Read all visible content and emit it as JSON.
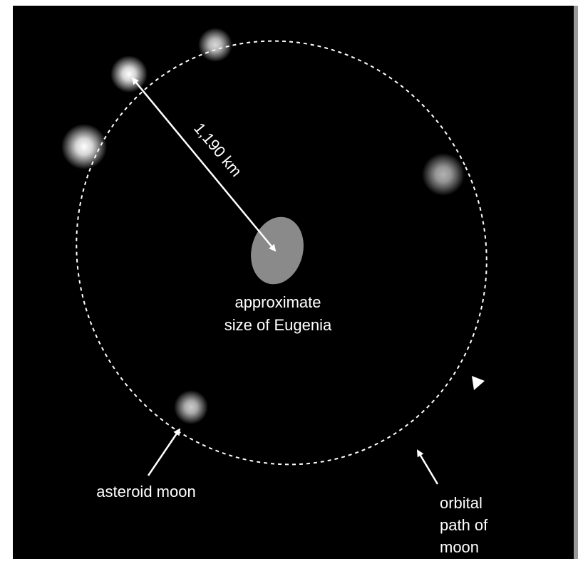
{
  "labels": {
    "distance": "1,190 km",
    "eugenia": [
      "approximate",
      "size of Eugenia"
    ],
    "moon": "asteroid moon",
    "orbit": [
      "orbital",
      "path of",
      "moon"
    ]
  }
}
